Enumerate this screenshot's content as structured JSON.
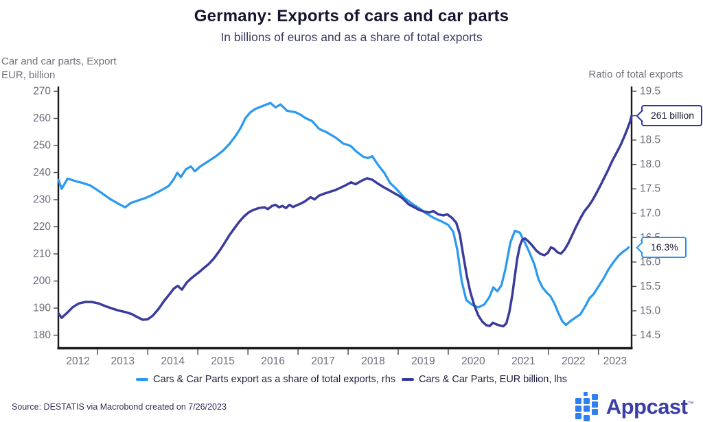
{
  "header": {
    "title": "Germany: Exports of cars and car parts",
    "subtitle": "In billions of euros and as a share of total exports"
  },
  "axes": {
    "left_title": "Car and car parts, Export\nEUR, billion",
    "right_title": "Ratio of total exports"
  },
  "chart_data": {
    "type": "line",
    "title": "Germany: Exports of cars and car parts",
    "subtitle": "In billions of euros and as a share of total exports",
    "x_year_labels": [
      "2012",
      "2013",
      "2014",
      "2015",
      "2016",
      "2017",
      "2018",
      "2019",
      "2020",
      "2021",
      "2022",
      "2023"
    ],
    "xlim": [
      2012.2,
      2023.66
    ],
    "ylim_left": [
      180,
      270
    ],
    "yticks_left": [
      180,
      190,
      200,
      210,
      220,
      230,
      240,
      250,
      260,
      270
    ],
    "ylim_right": [
      14.5,
      19.5
    ],
    "yticks_right": [
      14.5,
      15.0,
      15.5,
      16.0,
      16.5,
      17.0,
      17.5,
      18.0,
      18.5,
      19.0,
      19.5
    ],
    "grid": false,
    "legend_position": "bottom",
    "series": [
      {
        "key": "share-line",
        "name": "Cars & Car Parts export as a share of total exports, rhs",
        "axis": "right",
        "color": "#2b9af0",
        "stroke_width": 3.3,
        "points": [
          [
            2012.22,
            17.68
          ],
          [
            2012.28,
            17.5
          ],
          [
            2012.4,
            17.71
          ],
          [
            2012.55,
            17.66
          ],
          [
            2012.7,
            17.62
          ],
          [
            2012.85,
            17.57
          ],
          [
            2012.97,
            17.49
          ],
          [
            2013.1,
            17.4
          ],
          [
            2013.25,
            17.29
          ],
          [
            2013.42,
            17.19
          ],
          [
            2013.55,
            17.12
          ],
          [
            2013.66,
            17.21
          ],
          [
            2013.8,
            17.26
          ],
          [
            2013.95,
            17.31
          ],
          [
            2014.1,
            17.38
          ],
          [
            2014.25,
            17.46
          ],
          [
            2014.42,
            17.56
          ],
          [
            2014.52,
            17.7
          ],
          [
            2014.59,
            17.83
          ],
          [
            2014.66,
            17.74
          ],
          [
            2014.76,
            17.9
          ],
          [
            2014.86,
            17.96
          ],
          [
            2014.94,
            17.86
          ],
          [
            2015.05,
            17.96
          ],
          [
            2015.2,
            18.06
          ],
          [
            2015.35,
            18.16
          ],
          [
            2015.5,
            18.28
          ],
          [
            2015.63,
            18.42
          ],
          [
            2015.75,
            18.58
          ],
          [
            2015.85,
            18.74
          ],
          [
            2015.95,
            18.95
          ],
          [
            2016.05,
            19.07
          ],
          [
            2016.15,
            19.14
          ],
          [
            2016.3,
            19.2
          ],
          [
            2016.45,
            19.26
          ],
          [
            2016.55,
            19.17
          ],
          [
            2016.65,
            19.23
          ],
          [
            2016.78,
            19.1
          ],
          [
            2016.95,
            19.07
          ],
          [
            2017.05,
            19.02
          ],
          [
            2017.15,
            18.95
          ],
          [
            2017.28,
            18.89
          ],
          [
            2017.42,
            18.73
          ],
          [
            2017.57,
            18.66
          ],
          [
            2017.75,
            18.55
          ],
          [
            2017.9,
            18.43
          ],
          [
            2018.05,
            18.38
          ],
          [
            2018.16,
            18.27
          ],
          [
            2018.3,
            18.16
          ],
          [
            2018.4,
            18.13
          ],
          [
            2018.48,
            18.17
          ],
          [
            2018.6,
            17.99
          ],
          [
            2018.72,
            17.83
          ],
          [
            2018.84,
            17.62
          ],
          [
            2018.97,
            17.49
          ],
          [
            2019.12,
            17.32
          ],
          [
            2019.27,
            17.2
          ],
          [
            2019.42,
            17.1
          ],
          [
            2019.57,
            16.99
          ],
          [
            2019.72,
            16.9
          ],
          [
            2019.87,
            16.83
          ],
          [
            2020.0,
            16.76
          ],
          [
            2020.1,
            16.62
          ],
          [
            2020.18,
            16.25
          ],
          [
            2020.27,
            15.6
          ],
          [
            2020.36,
            15.22
          ],
          [
            2020.48,
            15.12
          ],
          [
            2020.6,
            15.07
          ],
          [
            2020.72,
            15.13
          ],
          [
            2020.82,
            15.28
          ],
          [
            2020.9,
            15.48
          ],
          [
            2020.98,
            15.4
          ],
          [
            2021.06,
            15.52
          ],
          [
            2021.14,
            15.85
          ],
          [
            2021.24,
            16.4
          ],
          [
            2021.33,
            16.64
          ],
          [
            2021.43,
            16.6
          ],
          [
            2021.52,
            16.42
          ],
          [
            2021.62,
            16.2
          ],
          [
            2021.72,
            15.95
          ],
          [
            2021.8,
            15.65
          ],
          [
            2021.88,
            15.48
          ],
          [
            2021.96,
            15.38
          ],
          [
            2022.04,
            15.3
          ],
          [
            2022.12,
            15.15
          ],
          [
            2022.2,
            14.95
          ],
          [
            2022.28,
            14.78
          ],
          [
            2022.35,
            14.71
          ],
          [
            2022.44,
            14.79
          ],
          [
            2022.54,
            14.86
          ],
          [
            2022.64,
            14.93
          ],
          [
            2022.74,
            15.1
          ],
          [
            2022.82,
            15.26
          ],
          [
            2022.9,
            15.34
          ],
          [
            2023.0,
            15.5
          ],
          [
            2023.1,
            15.66
          ],
          [
            2023.2,
            15.85
          ],
          [
            2023.3,
            16.0
          ],
          [
            2023.4,
            16.13
          ],
          [
            2023.5,
            16.22
          ],
          [
            2023.56,
            16.26
          ],
          [
            2023.6,
            16.3
          ]
        ]
      },
      {
        "key": "billion-line",
        "name": "Cars & Car Parts, EUR billion, lhs",
        "axis": "left",
        "color": "#3a3c9c",
        "stroke_width": 3.5,
        "points": [
          [
            2012.22,
            188.0
          ],
          [
            2012.28,
            186.4
          ],
          [
            2012.38,
            188.1
          ],
          [
            2012.5,
            190.3
          ],
          [
            2012.62,
            191.7
          ],
          [
            2012.76,
            192.3
          ],
          [
            2012.9,
            192.2
          ],
          [
            2013.02,
            191.7
          ],
          [
            2013.14,
            190.8
          ],
          [
            2013.28,
            189.9
          ],
          [
            2013.42,
            189.1
          ],
          [
            2013.56,
            188.5
          ],
          [
            2013.68,
            187.8
          ],
          [
            2013.8,
            186.6
          ],
          [
            2013.9,
            185.7
          ],
          [
            2014.0,
            185.9
          ],
          [
            2014.1,
            187.2
          ],
          [
            2014.22,
            189.8
          ],
          [
            2014.32,
            192.5
          ],
          [
            2014.42,
            194.8
          ],
          [
            2014.52,
            197.2
          ],
          [
            2014.6,
            198.2
          ],
          [
            2014.68,
            196.8
          ],
          [
            2014.78,
            199.5
          ],
          [
            2014.9,
            201.5
          ],
          [
            2015.02,
            203.2
          ],
          [
            2015.12,
            204.8
          ],
          [
            2015.22,
            206.3
          ],
          [
            2015.32,
            208.3
          ],
          [
            2015.42,
            210.8
          ],
          [
            2015.52,
            213.6
          ],
          [
            2015.62,
            216.6
          ],
          [
            2015.72,
            219.2
          ],
          [
            2015.82,
            221.7
          ],
          [
            2015.92,
            223.8
          ],
          [
            2016.02,
            225.4
          ],
          [
            2016.12,
            226.3
          ],
          [
            2016.22,
            226.9
          ],
          [
            2016.33,
            227.2
          ],
          [
            2016.4,
            226.5
          ],
          [
            2016.48,
            227.7
          ],
          [
            2016.55,
            228.1
          ],
          [
            2016.62,
            227.2
          ],
          [
            2016.69,
            227.7
          ],
          [
            2016.76,
            226.9
          ],
          [
            2016.83,
            228.1
          ],
          [
            2016.9,
            227.3
          ],
          [
            2016.97,
            227.9
          ],
          [
            2017.05,
            228.5
          ],
          [
            2017.14,
            229.4
          ],
          [
            2017.25,
            230.9
          ],
          [
            2017.33,
            230.1
          ],
          [
            2017.42,
            231.5
          ],
          [
            2017.52,
            232.2
          ],
          [
            2017.62,
            232.8
          ],
          [
            2017.74,
            233.5
          ],
          [
            2017.86,
            234.5
          ],
          [
            2017.96,
            235.4
          ],
          [
            2018.06,
            236.4
          ],
          [
            2018.15,
            235.7
          ],
          [
            2018.27,
            237.0
          ],
          [
            2018.38,
            237.9
          ],
          [
            2018.48,
            237.4
          ],
          [
            2018.58,
            236.1
          ],
          [
            2018.7,
            234.7
          ],
          [
            2018.82,
            233.5
          ],
          [
            2018.92,
            232.4
          ],
          [
            2019.02,
            231.4
          ],
          [
            2019.1,
            230.3
          ],
          [
            2019.2,
            228.4
          ],
          [
            2019.3,
            227.4
          ],
          [
            2019.42,
            226.2
          ],
          [
            2019.52,
            225.6
          ],
          [
            2019.62,
            225.3
          ],
          [
            2019.7,
            225.8
          ],
          [
            2019.8,
            224.6
          ],
          [
            2019.9,
            224.2
          ],
          [
            2019.98,
            224.6
          ],
          [
            2020.08,
            223.2
          ],
          [
            2020.16,
            221.5
          ],
          [
            2020.23,
            217.3
          ],
          [
            2020.3,
            209.5
          ],
          [
            2020.37,
            202.0
          ],
          [
            2020.44,
            196.0
          ],
          [
            2020.52,
            191.0
          ],
          [
            2020.6,
            187.3
          ],
          [
            2020.68,
            185.0
          ],
          [
            2020.76,
            183.7
          ],
          [
            2020.83,
            183.4
          ],
          [
            2020.89,
            184.6
          ],
          [
            2020.96,
            184.0
          ],
          [
            2021.03,
            183.6
          ],
          [
            2021.1,
            183.3
          ],
          [
            2021.16,
            184.4
          ],
          [
            2021.22,
            188.5
          ],
          [
            2021.28,
            195.0
          ],
          [
            2021.33,
            202.0
          ],
          [
            2021.38,
            208.5
          ],
          [
            2021.43,
            213.0
          ],
          [
            2021.48,
            215.3
          ],
          [
            2021.53,
            215.7
          ],
          [
            2021.6,
            214.6
          ],
          [
            2021.68,
            213.0
          ],
          [
            2021.76,
            211.2
          ],
          [
            2021.84,
            210.0
          ],
          [
            2021.92,
            209.5
          ],
          [
            2021.99,
            210.4
          ],
          [
            2022.05,
            212.4
          ],
          [
            2022.11,
            211.9
          ],
          [
            2022.18,
            210.6
          ],
          [
            2022.25,
            210.1
          ],
          [
            2022.32,
            211.5
          ],
          [
            2022.4,
            214.0
          ],
          [
            2022.48,
            217.2
          ],
          [
            2022.56,
            220.3
          ],
          [
            2022.64,
            223.2
          ],
          [
            2022.72,
            225.8
          ],
          [
            2022.8,
            227.6
          ],
          [
            2022.88,
            229.8
          ],
          [
            2022.96,
            232.5
          ],
          [
            2023.04,
            235.3
          ],
          [
            2023.12,
            238.3
          ],
          [
            2023.2,
            241.3
          ],
          [
            2023.28,
            244.5
          ],
          [
            2023.36,
            247.3
          ],
          [
            2023.44,
            250.1
          ],
          [
            2023.52,
            253.5
          ],
          [
            2023.58,
            256.3
          ],
          [
            2023.63,
            258.8
          ],
          [
            2023.66,
            260.9
          ]
        ]
      }
    ],
    "annotations": [
      {
        "text": "261 billion",
        "series": "billion-line",
        "color": "#2e35a8"
      },
      {
        "text": "16.3%",
        "series": "share-line",
        "color": "#2491f0"
      }
    ]
  },
  "legend": {
    "items": [
      {
        "label": "Cars & Car Parts export as a share of total exports, rhs",
        "color": "#2b9af0"
      },
      {
        "label": "Cars & Car Parts, EUR billion, lhs",
        "color": "#3a3c9c"
      }
    ]
  },
  "footer": {
    "source": "Source: DESTATIS via Macrobond created on 7/26/2023"
  },
  "branding": {
    "wordmark": "Appcast",
    "trademark": "™",
    "icon_color": "#2e7ff2",
    "text_color": "#3a3ea8"
  }
}
